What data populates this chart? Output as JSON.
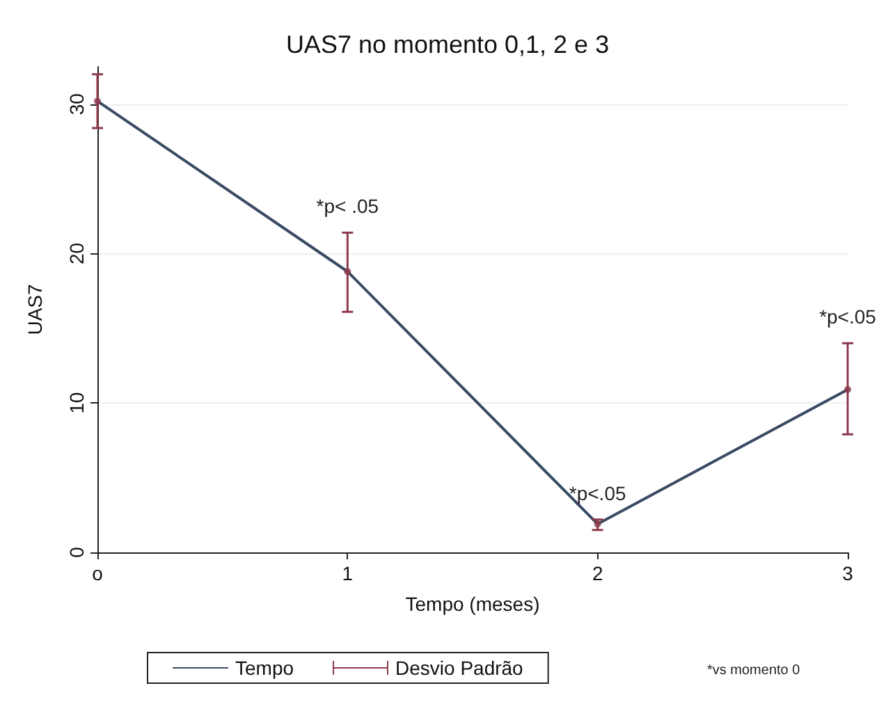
{
  "chart_data": {
    "type": "line",
    "title": "UAS7 no momento 0,1, 2 e 3",
    "xlabel": "Tempo (meses)",
    "ylabel": "UAS7",
    "x": [
      0,
      1,
      2,
      3
    ],
    "series": [
      {
        "name": "Tempo",
        "color": "#3b4a63",
        "values": [
          30.2,
          18.8,
          1.9,
          10.9
        ]
      },
      {
        "name": "Desvio Padrão",
        "type": "scatter",
        "marker": "circle",
        "color": "#8c3a4c",
        "values": [
          30.2,
          18.8,
          1.9,
          10.9
        ],
        "errors": [
          [
            28.4,
            32.0
          ],
          [
            16.1,
            21.4
          ],
          [
            1.5,
            2.2
          ],
          [
            7.9,
            14.0
          ]
        ]
      }
    ],
    "xlim": [
      0,
      3
    ],
    "xticks": [
      {
        "value": 0,
        "label": "o"
      },
      1,
      2,
      3
    ],
    "ylim": [
      0,
      32.5
    ],
    "yticks": [
      0,
      10,
      20,
      30
    ],
    "grid": "y",
    "legend": "bottom",
    "marker": "none",
    "line_style": "solid",
    "annotations": [
      {
        "text": "*p< .05",
        "x": 1,
        "y": 21.4
      },
      {
        "text": "*p<.05",
        "x": 2,
        "y": 2.2
      },
      {
        "text": "*p<.05",
        "x": 3,
        "y": 14.0
      },
      "*vs momento 0"
    ]
  }
}
